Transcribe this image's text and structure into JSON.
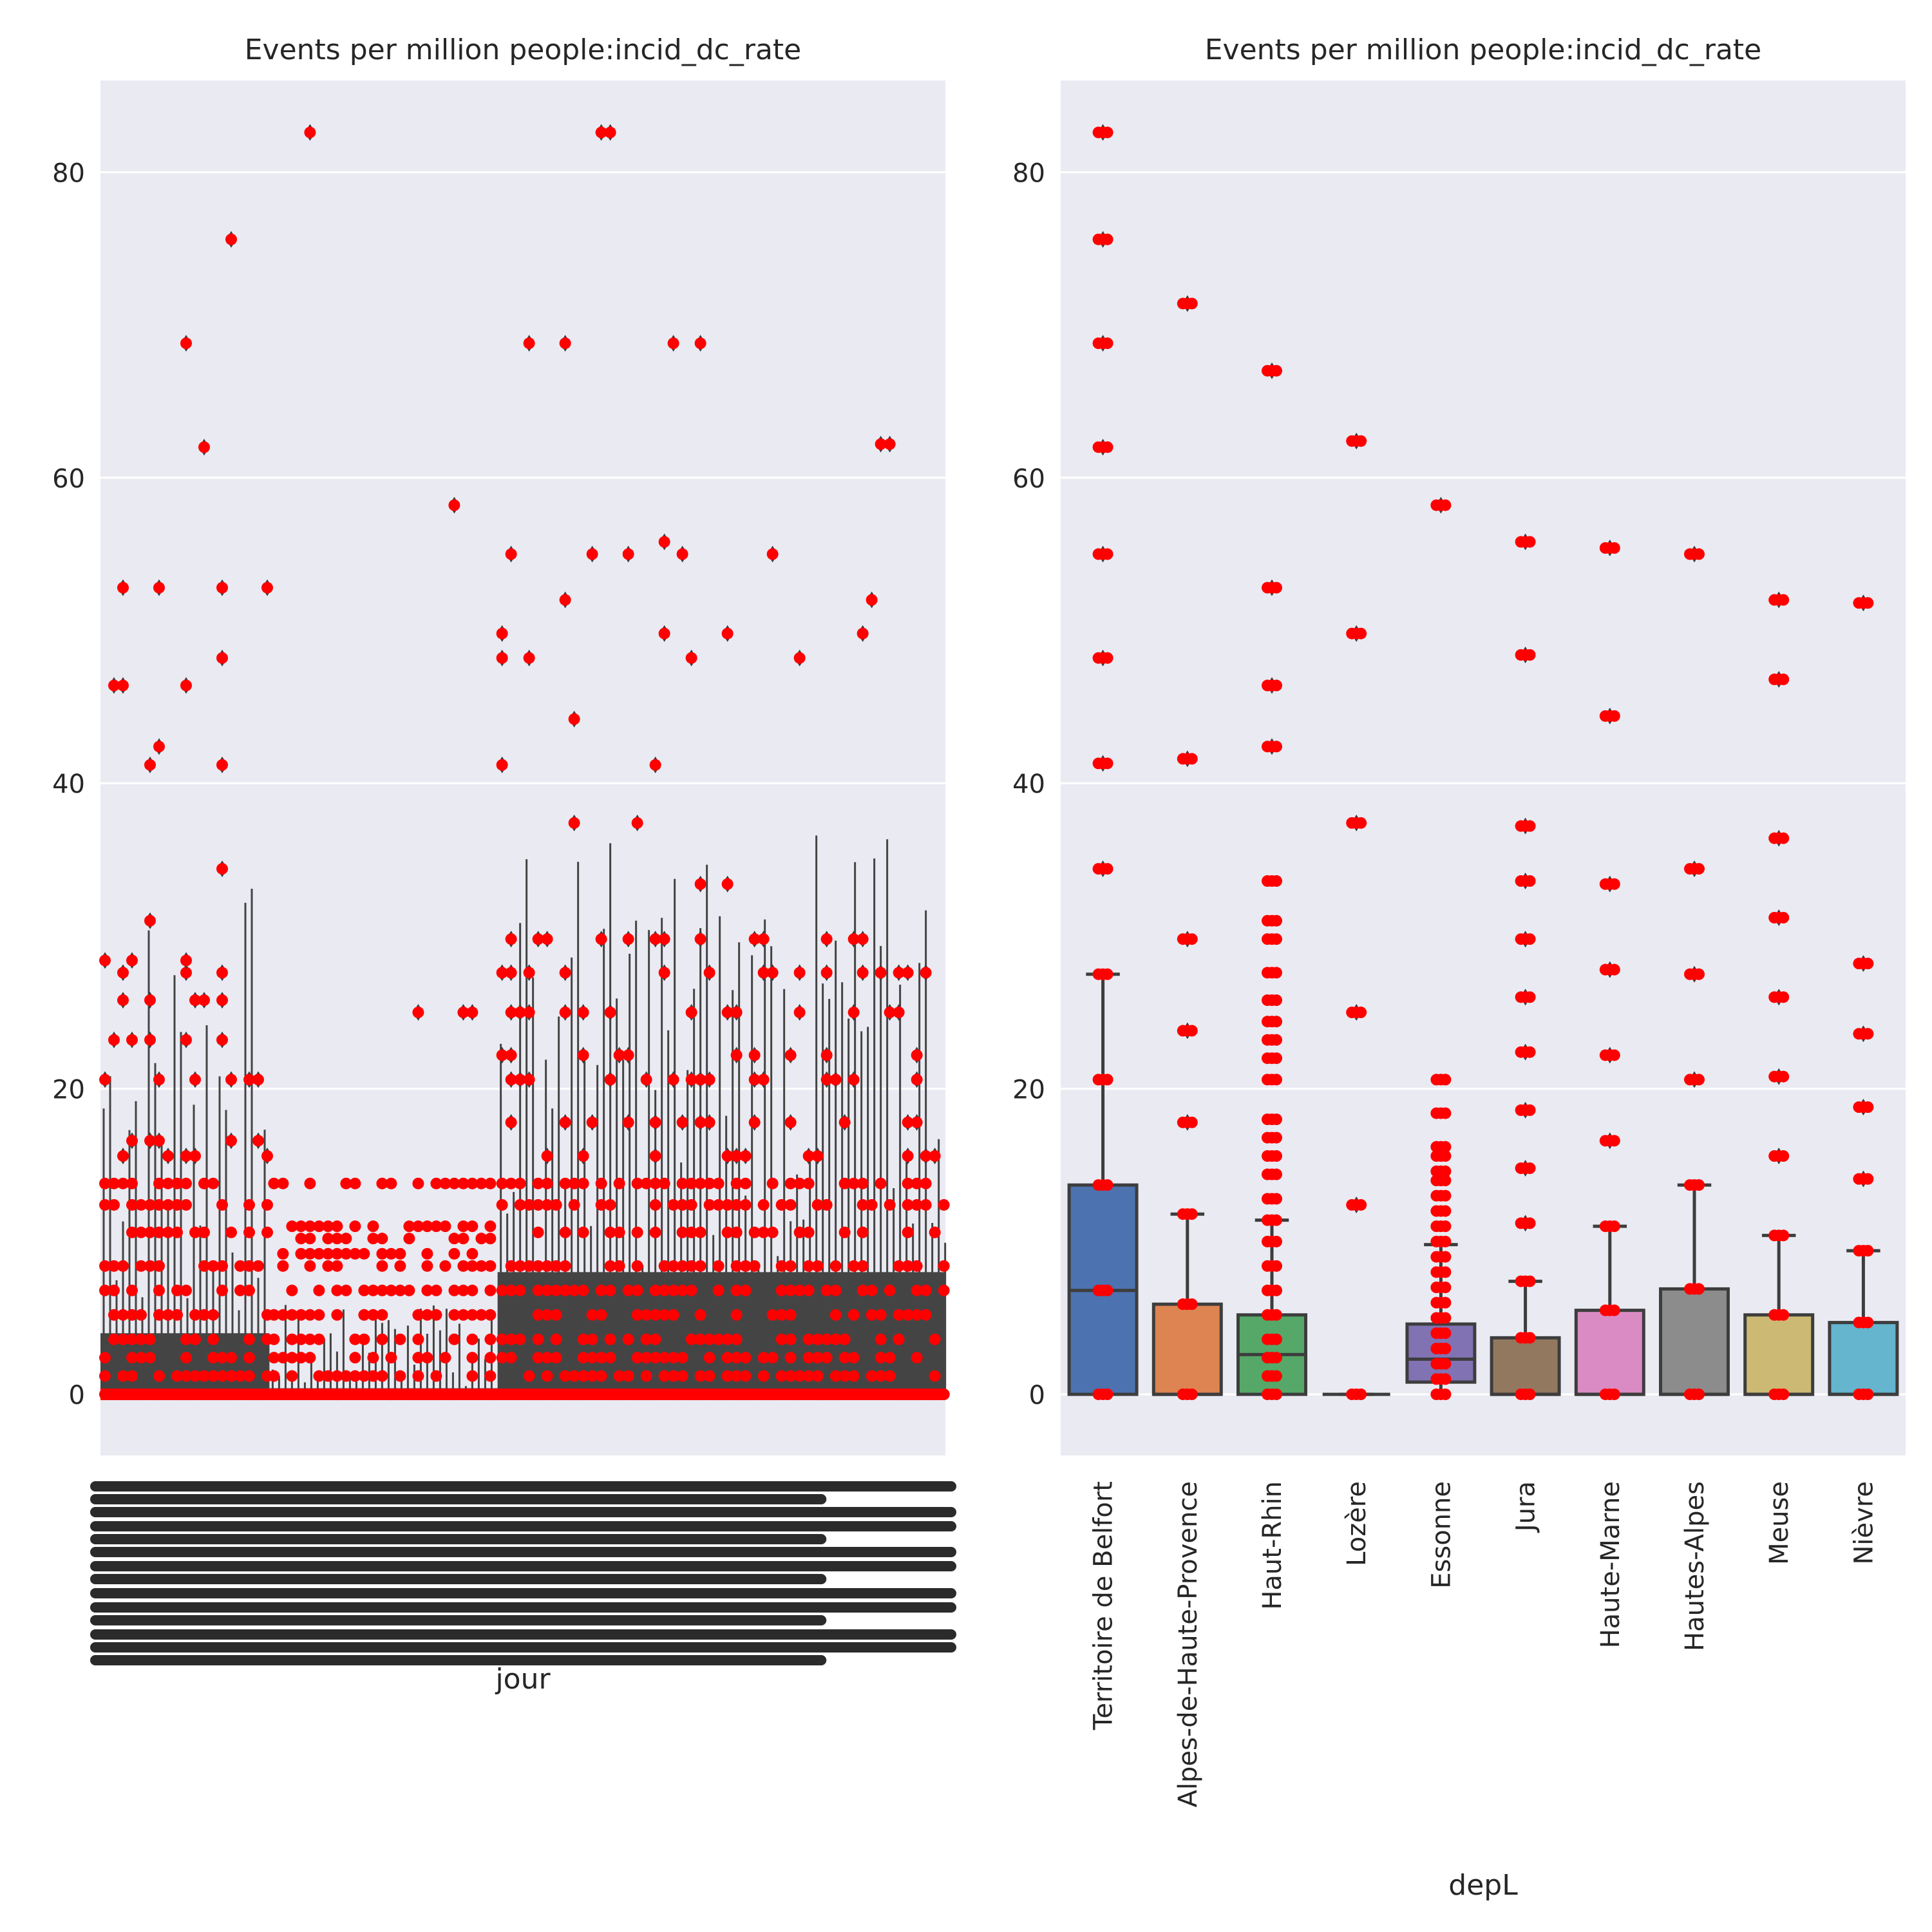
{
  "chart_data": [
    {
      "type": "box",
      "title": "Events per million people:incid_dc_rate",
      "xlabel": "jour",
      "ylabel": "",
      "ylim": [
        -4,
        86
      ],
      "yticks": [
        0,
        20,
        40,
        60,
        80
      ],
      "grid": true,
      "note": "hundreds of daily categories; tick labels overlap into an unreadable dark band",
      "clusters": [
        {
          "x_from": 0.0,
          "x_to": 0.2,
          "q3": 4,
          "whisker_max": 34,
          "values": [
            0,
            1.2,
            2.4,
            3.6,
            5.2,
            6.8,
            8.4,
            10.6,
            12.4,
            13.8,
            15.6,
            16.6,
            20.6,
            23.2,
            25.8,
            27.6,
            28.4,
            31,
            33.4,
            34.4,
            41.2,
            42.4,
            44.2,
            46.4,
            48.2,
            52.8,
            55,
            55.4,
            62,
            67,
            68.8,
            75.6
          ]
        },
        {
          "x_from": 0.2,
          "x_to": 0.47,
          "q3": 0.4,
          "whisker_max": 6,
          "values": [
            0,
            1.2,
            2.4,
            3.6,
            5.2,
            6.8,
            8.4,
            9.2,
            10.2,
            11,
            13.8,
            25,
            58.2,
            82.6
          ]
        },
        {
          "x_from": 0.47,
          "x_to": 1.0,
          "q3": 8,
          "whisker_max": 37,
          "values": [
            0,
            1.2,
            2.4,
            3.6,
            5.2,
            6.8,
            8.4,
            10.6,
            12.4,
            13.8,
            15.6,
            17.8,
            20.6,
            22.2,
            25,
            27.6,
            29.8,
            33.4,
            37.4,
            41.2,
            44.2,
            48.2,
            49.8,
            52,
            55,
            55.8,
            62.2,
            68.8,
            71.2,
            75.6,
            82.6
          ]
        }
      ]
    },
    {
      "type": "box",
      "title": "Events per million people:incid_dc_rate",
      "xlabel": "depL",
      "ylabel": "",
      "ylim": [
        -4,
        86
      ],
      "yticks": [
        0,
        20,
        40,
        60,
        80
      ],
      "grid": true,
      "categories": [
        "Territoire de Belfort",
        "Alpes-de-Haute-Provence",
        "Haut-Rhin",
        "Lozère",
        "Essonne",
        "Jura",
        "Haute-Marne",
        "Hautes-Alpes",
        "Meuse",
        "Nièvre"
      ],
      "colors": [
        "#4c72b0",
        "#dd8452",
        "#55a868",
        "#c44e52",
        "#8172b3",
        "#937860",
        "#da8bc3",
        "#8c8c8c",
        "#ccb974",
        "#64b5cd"
      ],
      "point_color": "#ff0000",
      "boxes": [
        {
          "q1": 0,
          "median": 6.8,
          "q3": 13.7,
          "whisker_low": 0,
          "whisker_high": 27.5,
          "outliers": [
            34.4,
            41.3,
            48.2,
            55,
            62,
            68.8,
            75.6,
            82.6
          ],
          "points": [
            0,
            6.8,
            13.7,
            20.6,
            27.5,
            34.4,
            41.3,
            48.2,
            55,
            62,
            68.8,
            75.6,
            82.6
          ]
        },
        {
          "q1": 0,
          "median": 0,
          "q3": 5.9,
          "whisker_low": 0,
          "whisker_high": 11.8,
          "outliers": [
            17.8,
            23.8,
            29.8,
            41.6,
            71.4
          ],
          "points": [
            0,
            5.9,
            11.8,
            17.8,
            23.8,
            29.8,
            41.6,
            71.4
          ]
        },
        {
          "q1": 0,
          "median": 2.6,
          "q3": 5.2,
          "whisker_low": 0,
          "whisker_high": 11.4,
          "outliers": [
            42.4,
            46.4,
            52.8,
            67
          ],
          "points": [
            0,
            1.2,
            2.4,
            3.6,
            5.2,
            6.8,
            8.4,
            10,
            11.4,
            12.8,
            14.4,
            15.6,
            16.8,
            18,
            20.6,
            22,
            23.2,
            24.4,
            25.8,
            27.6,
            29.8,
            31,
            33.6,
            42.4,
            46.4,
            52.8,
            67
          ]
        },
        {
          "q1": 0,
          "median": 0,
          "q3": 0,
          "whisker_low": 0,
          "whisker_high": 0,
          "outliers": [
            12.4,
            25,
            37.4,
            49.8,
            62.4
          ],
          "points": [
            0,
            12.4,
            25,
            37.4,
            49.8,
            62.4
          ]
        },
        {
          "q1": 0.8,
          "median": 2.3,
          "q3": 4.6,
          "whisker_low": 0,
          "whisker_high": 9.8,
          "outliers": [
            58.2
          ],
          "points": [
            0,
            1,
            2,
            3,
            4,
            5,
            6,
            7,
            8,
            9,
            10,
            11,
            12,
            13,
            14,
            14.6,
            15.6,
            16.2,
            18.4,
            20.6,
            58.2
          ]
        },
        {
          "q1": 0,
          "median": 0,
          "q3": 3.7,
          "whisker_low": 0,
          "whisker_high": 7.4,
          "outliers": [
            11.2,
            14.8,
            18.6,
            22.4,
            26,
            29.8,
            33.6,
            37.2,
            48.4,
            55.8
          ],
          "points": [
            0,
            3.7,
            7.4,
            11.2,
            14.8,
            18.6,
            22.4,
            26,
            29.8,
            33.6,
            37.2,
            48.4,
            55.8
          ]
        },
        {
          "q1": 0,
          "median": 0,
          "q3": 5.5,
          "whisker_low": 0,
          "whisker_high": 11,
          "outliers": [
            16.6,
            22.2,
            27.8,
            33.4,
            44.4,
            55.4
          ],
          "points": [
            0,
            5.5,
            11,
            16.6,
            22.2,
            27.8,
            33.4,
            44.4,
            55.4
          ]
        },
        {
          "q1": 0,
          "median": 0,
          "q3": 6.9,
          "whisker_low": 0,
          "whisker_high": 13.7,
          "outliers": [
            20.6,
            27.5,
            34.4,
            55
          ],
          "points": [
            0,
            6.9,
            13.7,
            20.6,
            27.5,
            34.4,
            55
          ]
        },
        {
          "q1": 0,
          "median": 0,
          "q3": 5.2,
          "whisker_low": 0,
          "whisker_high": 10.4,
          "outliers": [
            15.6,
            20.8,
            26,
            31.2,
            36.4,
            46.8,
            52
          ],
          "points": [
            0,
            5.2,
            10.4,
            15.6,
            20.8,
            26,
            31.2,
            36.4,
            46.8,
            52
          ]
        },
        {
          "q1": 0,
          "median": 0,
          "q3": 4.7,
          "whisker_low": 0,
          "whisker_high": 9.4,
          "outliers": [
            14.1,
            18.8,
            23.6,
            28.2,
            51.8
          ],
          "points": [
            0,
            4.7,
            9.4,
            14.1,
            18.8,
            23.6,
            28.2,
            51.8
          ]
        }
      ]
    }
  ]
}
